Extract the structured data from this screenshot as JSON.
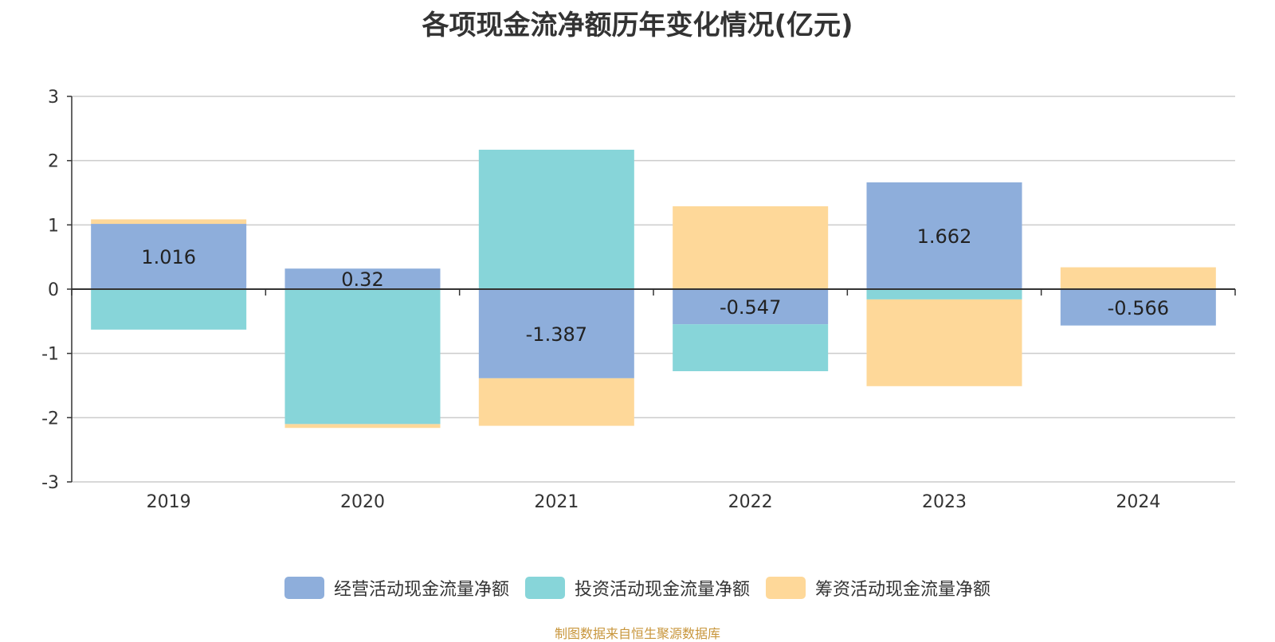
{
  "title": "各项现金流净额历年变化情况(亿元)",
  "source": "制图数据来自恒生聚源数据库",
  "colors": {
    "operating": "#8eaedb",
    "investing": "#87d5d9",
    "financing": "#fed899"
  },
  "chart_data": {
    "type": "bar",
    "stacked": true,
    "categories": [
      "2019",
      "2020",
      "2021",
      "2022",
      "2023",
      "2024"
    ],
    "ylim": [
      -3,
      3
    ],
    "yticks": [
      3,
      2,
      1,
      0,
      -1,
      -2,
      -3
    ],
    "grid": true,
    "legend_position": "bottom",
    "series": [
      {
        "name": "经营活动现金流量净额",
        "color_key": "operating",
        "values": [
          1.016,
          0.32,
          -1.387,
          -0.547,
          1.662,
          -0.566
        ],
        "labels": [
          "1.016",
          "0.32",
          "-1.387",
          "-0.547",
          "1.662",
          "-0.566"
        ]
      },
      {
        "name": "投资活动现金流量净额",
        "color_key": "investing",
        "values": [
          -0.63,
          -2.1,
          2.17,
          -0.73,
          -0.16,
          0.0
        ]
      },
      {
        "name": "筹资活动现金流量净额",
        "color_key": "financing",
        "values": [
          0.07,
          -0.06,
          -0.74,
          1.29,
          -1.35,
          0.34
        ]
      }
    ]
  }
}
